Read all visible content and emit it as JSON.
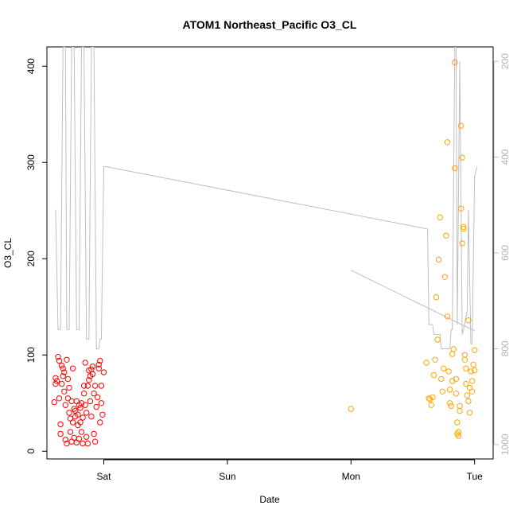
{
  "chart_data": {
    "type": "scatter",
    "title": "ATOM1 Northeast_Pacific O3_CL",
    "xlabel": "Date",
    "ylabel": "O3_CL",
    "x_unit": "days since start of Saturday",
    "xlim": [
      -0.46,
      3.15
    ],
    "ylim": [
      -8,
      420
    ],
    "y_ticks": [
      0,
      100,
      200,
      300,
      400
    ],
    "x_ticks": [
      {
        "value": 0,
        "label": "Sat"
      },
      {
        "value": 1,
        "label": "Sun"
      },
      {
        "value": 2,
        "label": "Mon"
      },
      {
        "value": 3,
        "label": "Tue"
      }
    ],
    "y2": {
      "label": "",
      "lim": [
        1030,
        170
      ],
      "ticks": [
        200,
        400,
        600,
        800,
        1000
      ],
      "color": "#bebebe"
    },
    "colors": {
      "series_early": "#ff0000",
      "series_late": "#ffa500",
      "series_mon": "#ffa500",
      "line": "#bebebe"
    },
    "series": [
      {
        "color": "#ff0000",
        "points": [
          [
            -0.4,
            51
          ],
          [
            -0.39,
            70
          ],
          [
            -0.39,
            76
          ],
          [
            -0.38,
            73
          ],
          [
            -0.37,
            98
          ],
          [
            -0.36,
            94
          ],
          [
            -0.36,
            55
          ],
          [
            -0.35,
            28
          ],
          [
            -0.35,
            18
          ],
          [
            -0.34,
            89
          ],
          [
            -0.34,
            70
          ],
          [
            -0.33,
            86
          ],
          [
            -0.33,
            78
          ],
          [
            -0.32,
            82
          ],
          [
            -0.32,
            62
          ],
          [
            -0.31,
            48
          ],
          [
            -0.31,
            12
          ],
          [
            -0.3,
            8
          ],
          [
            -0.3,
            95
          ],
          [
            -0.29,
            75
          ],
          [
            -0.29,
            55
          ],
          [
            -0.28,
            66
          ],
          [
            -0.28,
            40
          ],
          [
            -0.27,
            34
          ],
          [
            -0.27,
            20
          ],
          [
            -0.26,
            10
          ],
          [
            -0.26,
            52
          ],
          [
            -0.25,
            86
          ],
          [
            -0.25,
            30
          ],
          [
            -0.24,
            44
          ],
          [
            -0.24,
            14
          ],
          [
            -0.23,
            42
          ],
          [
            -0.23,
            36
          ],
          [
            -0.22,
            52
          ],
          [
            -0.22,
            9
          ],
          [
            -0.21,
            38
          ],
          [
            -0.21,
            27
          ],
          [
            -0.2,
            48
          ],
          [
            -0.2,
            13
          ],
          [
            -0.19,
            45
          ],
          [
            -0.19,
            30
          ],
          [
            -0.18,
            50
          ],
          [
            -0.18,
            20
          ],
          [
            -0.17,
            8
          ],
          [
            -0.17,
            35
          ],
          [
            -0.16,
            60
          ],
          [
            -0.16,
            68
          ],
          [
            -0.15,
            92
          ],
          [
            -0.15,
            48
          ],
          [
            -0.14,
            40
          ],
          [
            -0.14,
            15
          ],
          [
            -0.13,
            68
          ],
          [
            -0.13,
            8
          ],
          [
            -0.12,
            84
          ],
          [
            -0.12,
            74
          ],
          [
            -0.11,
            78
          ],
          [
            -0.11,
            52
          ],
          [
            -0.1,
            36
          ],
          [
            -0.1,
            85
          ],
          [
            -0.09,
            88
          ],
          [
            -0.09,
            80
          ],
          [
            -0.08,
            60
          ],
          [
            -0.08,
            18
          ],
          [
            -0.07,
            10
          ],
          [
            -0.07,
            68
          ],
          [
            -0.06,
            46
          ],
          [
            -0.05,
            56
          ],
          [
            -0.04,
            90
          ],
          [
            -0.04,
            86
          ],
          [
            -0.03,
            94
          ],
          [
            -0.03,
            30
          ],
          [
            -0.02,
            68
          ],
          [
            -0.02,
            50
          ],
          [
            -0.01,
            38
          ],
          [
            0,
            82
          ]
        ]
      },
      {
        "color": "#ffa500",
        "points": [
          [
            2.0,
            44
          ]
        ]
      },
      {
        "color": "#ffa500",
        "points": [
          [
            2.61,
            92
          ],
          [
            2.63,
            55
          ],
          [
            2.64,
            54
          ],
          [
            2.65,
            48
          ],
          [
            2.66,
            56
          ],
          [
            2.67,
            79
          ],
          [
            2.68,
            95
          ],
          [
            2.69,
            160
          ],
          [
            2.7,
            116
          ],
          [
            2.71,
            199
          ],
          [
            2.72,
            243
          ],
          [
            2.73,
            75
          ],
          [
            2.74,
            62
          ],
          [
            2.75,
            86
          ],
          [
            2.76,
            181
          ],
          [
            2.77,
            224
          ],
          [
            2.78,
            321
          ],
          [
            2.78,
            140
          ],
          [
            2.79,
            83
          ],
          [
            2.8,
            64
          ],
          [
            2.8,
            50
          ],
          [
            2.81,
            47
          ],
          [
            2.82,
            101
          ],
          [
            2.82,
            73
          ],
          [
            2.83,
            106
          ],
          [
            2.84,
            404
          ],
          [
            2.84,
            294
          ],
          [
            2.85,
            75
          ],
          [
            2.85,
            60
          ],
          [
            2.86,
            30
          ],
          [
            2.86,
            18
          ],
          [
            2.87,
            20
          ],
          [
            2.87,
            16
          ],
          [
            2.88,
            47
          ],
          [
            2.88,
            42
          ],
          [
            2.89,
            338
          ],
          [
            2.89,
            252
          ],
          [
            2.9,
            305
          ],
          [
            2.9,
            216
          ],
          [
            2.91,
            233
          ],
          [
            2.91,
            231
          ],
          [
            2.92,
            100
          ],
          [
            2.92,
            95
          ],
          [
            2.93,
            86
          ],
          [
            2.93,
            70
          ],
          [
            2.94,
            58
          ],
          [
            2.95,
            136
          ],
          [
            2.95,
            52
          ],
          [
            2.96,
            66
          ],
          [
            2.96,
            40
          ],
          [
            2.97,
            83
          ],
          [
            2.98,
            73
          ],
          [
            2.98,
            62
          ],
          [
            2.99,
            90
          ],
          [
            3.0,
            105
          ],
          [
            3.0,
            84
          ]
        ]
      }
    ],
    "line": {
      "color": "#bebebe",
      "y2_points": [
        [
          -0.39,
          510
        ],
        [
          -0.37,
          760
        ],
        [
          -0.35,
          760
        ],
        [
          -0.33,
          170
        ],
        [
          -0.31,
          170
        ],
        [
          -0.3,
          760
        ],
        [
          -0.28,
          760
        ],
        [
          -0.26,
          170
        ],
        [
          -0.24,
          170
        ],
        [
          -0.22,
          760
        ],
        [
          -0.2,
          760
        ],
        [
          -0.18,
          170
        ],
        [
          -0.16,
          170
        ],
        [
          -0.14,
          780
        ],
        [
          -0.12,
          780
        ],
        [
          -0.1,
          170
        ],
        [
          -0.08,
          170
        ],
        [
          -0.06,
          800
        ],
        [
          -0.04,
          800
        ],
        [
          -0.03,
          780
        ],
        [
          -0.02,
          780
        ],
        [
          0.0,
          420
        ],
        [
          0.02,
          420
        ],
        [
          2.62,
          550
        ],
        [
          2.63,
          750
        ],
        [
          2.66,
          750
        ],
        [
          2.67,
          770
        ],
        [
          2.72,
          770
        ],
        [
          2.73,
          800
        ],
        [
          2.8,
          800
        ],
        [
          2.81,
          760
        ],
        [
          2.82,
          760
        ],
        [
          2.84,
          170
        ],
        [
          2.85,
          170
        ],
        [
          2.86,
          750
        ],
        [
          2.88,
          200
        ],
        [
          2.9,
          770
        ],
        [
          2.91,
          760
        ],
        [
          2.94,
          720
        ],
        [
          2.95,
          510
        ],
        [
          2.97,
          790
        ],
        [
          2.98,
          790
        ],
        [
          3.0,
          440
        ],
        [
          3.02,
          420
        ]
      ],
      "segment_left": [
        [
          2.0,
          188
        ],
        [
          3.0,
          125
        ]
      ]
    }
  }
}
